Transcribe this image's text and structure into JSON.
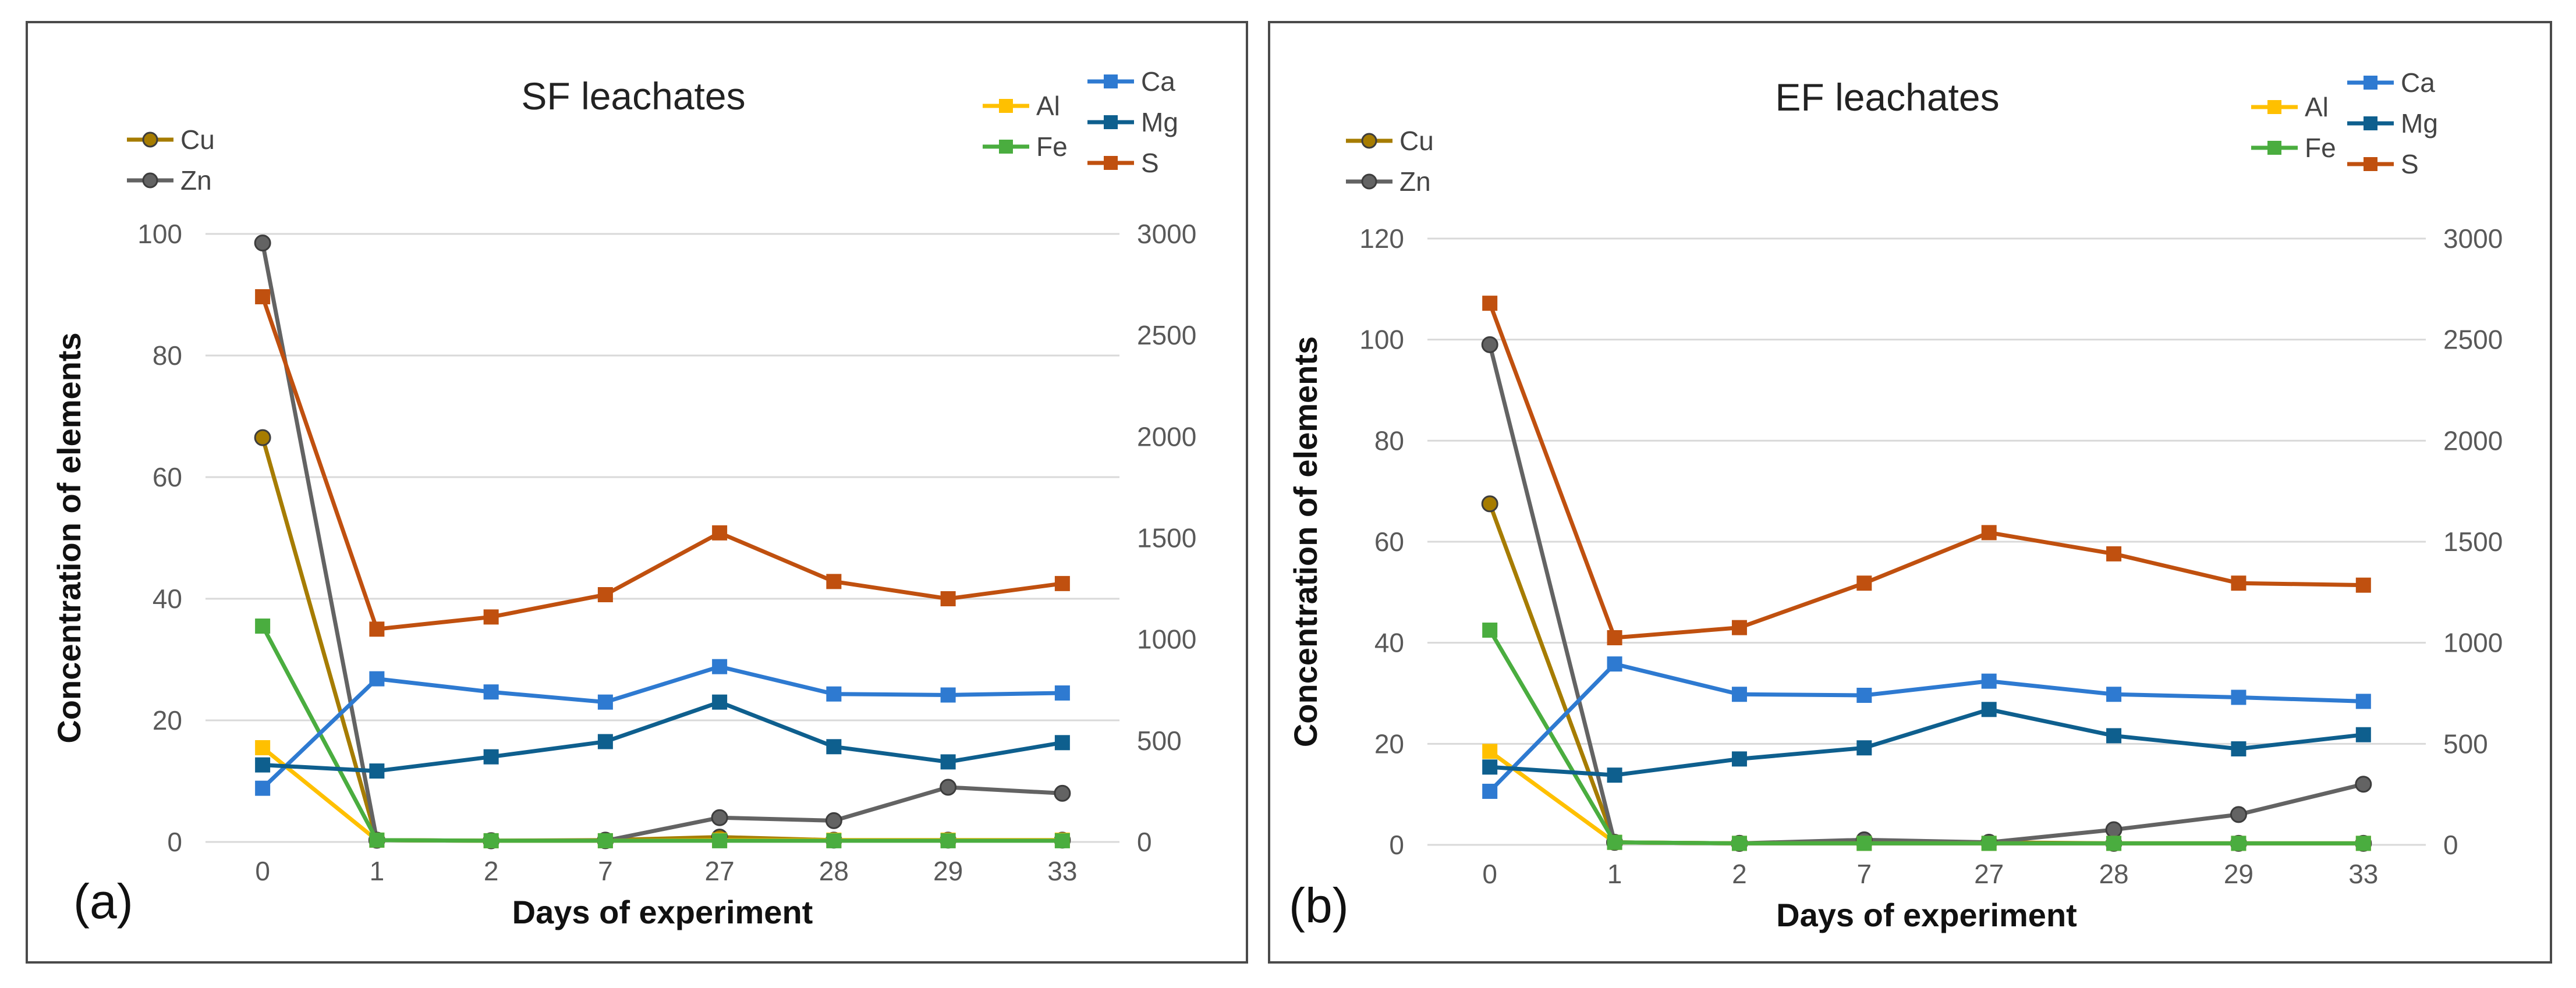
{
  "colors": {
    "Cu": "#a67c00",
    "Zn": "#636363",
    "Al": "#ffc000",
    "Fe": "#4aad3f",
    "Ca": "#2e7ad1",
    "Mg": "#0e5f8e",
    "S": "#c0500f"
  },
  "chart_data": [
    {
      "type": "line",
      "panel_label": "(a)",
      "title": "SF leachates",
      "xlabel": "Days of experiment",
      "ylabel": "Concentration of elements",
      "categories": [
        "0",
        "1",
        "2",
        "7",
        "27",
        "28",
        "29",
        "33"
      ],
      "ylim_left": [
        0,
        100
      ],
      "yticks_left": [
        0,
        20,
        40,
        60,
        80,
        100
      ],
      "ylim_right": [
        0,
        3000
      ],
      "yticks_right": [
        0,
        500,
        1000,
        1500,
        2000,
        2500,
        3000
      ],
      "grid": true,
      "series": [
        {
          "name": "Cu",
          "axis": "left",
          "marker": "circle",
          "values": [
            66.5,
            0.3,
            0.2,
            0.3,
            0.8,
            0.3,
            0.3,
            0.3
          ]
        },
        {
          "name": "Zn",
          "axis": "left",
          "marker": "circle",
          "values": [
            98.5,
            0.3,
            0.2,
            0.2,
            4.0,
            3.5,
            9.0,
            8.0
          ]
        },
        {
          "name": "Al",
          "axis": "left",
          "marker": "square",
          "values": [
            15.5,
            0.3,
            0.2,
            0.2,
            0.3,
            0.3,
            0.3,
            0.3
          ]
        },
        {
          "name": "Fe",
          "axis": "left",
          "marker": "square",
          "values": [
            35.5,
            0.3,
            0.2,
            0.2,
            0.2,
            0.2,
            0.2,
            0.2
          ]
        },
        {
          "name": "Ca",
          "axis": "right",
          "marker": "square",
          "values": [
            265,
            805,
            740,
            690,
            865,
            730,
            725,
            735
          ]
        },
        {
          "name": "Mg",
          "axis": "right",
          "marker": "square",
          "values": [
            380,
            350,
            420,
            495,
            690,
            470,
            395,
            490
          ]
        },
        {
          "name": "S",
          "axis": "right",
          "marker": "square",
          "values": [
            2690,
            1050,
            1110,
            1220,
            1525,
            1285,
            1200,
            1275
          ]
        }
      ],
      "legend": [
        [
          "Cu",
          "Zn"
        ],
        [
          "Al",
          "Fe"
        ],
        [
          "Ca",
          "Mg",
          "S"
        ]
      ]
    },
    {
      "type": "line",
      "panel_label": "(b)",
      "title": "EF leachates",
      "xlabel": "Days of experiment",
      "ylabel": "Concentration of elements",
      "categories": [
        "0",
        "1",
        "2",
        "7",
        "27",
        "28",
        "29",
        "33"
      ],
      "ylim_left": [
        0,
        120
      ],
      "yticks_left": [
        0,
        20,
        40,
        60,
        80,
        100,
        120
      ],
      "ylim_right": [
        0,
        3000
      ],
      "yticks_right": [
        0,
        500,
        1000,
        1500,
        2000,
        2500,
        3000
      ],
      "grid": true,
      "series": [
        {
          "name": "Cu",
          "axis": "left",
          "marker": "circle",
          "values": [
            67.5,
            0.5,
            0.3,
            0.5,
            0.5,
            0.3,
            0.3,
            0.3
          ]
        },
        {
          "name": "Zn",
          "axis": "left",
          "marker": "circle",
          "values": [
            99.0,
            0.5,
            0.3,
            1.0,
            0.5,
            3.0,
            6.0,
            12.0
          ]
        },
        {
          "name": "Al",
          "axis": "left",
          "marker": "square",
          "values": [
            18.5,
            0.5,
            0.3,
            0.3,
            0.3,
            0.3,
            0.3,
            0.3
          ]
        },
        {
          "name": "Fe",
          "axis": "left",
          "marker": "square",
          "values": [
            42.5,
            0.5,
            0.3,
            0.3,
            0.3,
            0.3,
            0.3,
            0.3
          ]
        },
        {
          "name": "Ca",
          "axis": "right",
          "marker": "square",
          "values": [
            265,
            895,
            745,
            740,
            810,
            745,
            730,
            710
          ]
        },
        {
          "name": "Mg",
          "axis": "right",
          "marker": "square",
          "values": [
            385,
            345,
            425,
            480,
            670,
            540,
            475,
            545
          ]
        },
        {
          "name": "S",
          "axis": "right",
          "marker": "square",
          "values": [
            2680,
            1025,
            1075,
            1295,
            1545,
            1440,
            1295,
            1285
          ]
        }
      ],
      "legend": [
        [
          "Cu",
          "Zn"
        ],
        [
          "Al",
          "Fe"
        ],
        [
          "Ca",
          "Mg",
          "S"
        ]
      ]
    }
  ]
}
